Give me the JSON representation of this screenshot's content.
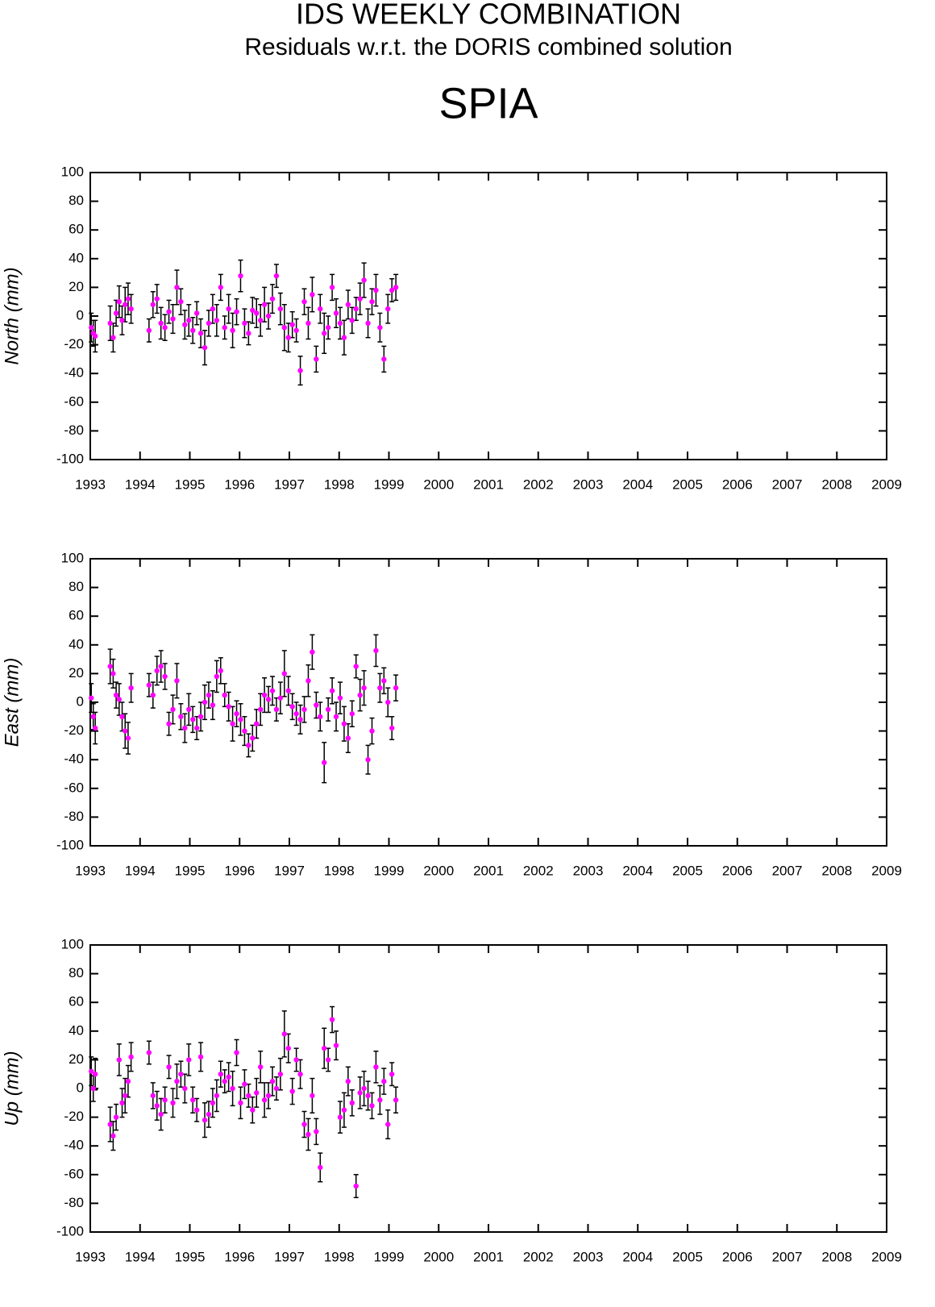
{
  "title": "IDS WEEKLY COMBINATION",
  "subtitle": "Residuals w.r.t. the DORIS combined solution",
  "station": "SPIA",
  "chart_data": [
    {
      "type": "scatter",
      "ylabel": "North (mm)",
      "color": "#ff00ff",
      "error_color": "#000000",
      "xlim": [
        1993,
        2009
      ],
      "xticks": [
        1993,
        1994,
        1995,
        1996,
        1997,
        1998,
        1999,
        2000,
        2001,
        2002,
        2003,
        2004,
        2005,
        2006,
        2007,
        2008,
        2009
      ],
      "ylim": [
        -100,
        100
      ],
      "yticks": [
        -100,
        -80,
        -60,
        -40,
        -20,
        0,
        20,
        40,
        60,
        80,
        100
      ],
      "x": [
        1993.02,
        1993.06,
        1993.1,
        1993.4,
        1993.46,
        1993.52,
        1993.58,
        1993.64,
        1993.7,
        1993.76,
        1993.82,
        1994.18,
        1994.26,
        1994.34,
        1994.42,
        1994.5,
        1994.58,
        1994.66,
        1994.74,
        1994.82,
        1994.9,
        1994.98,
        1995.06,
        1995.14,
        1995.22,
        1995.3,
        1995.38,
        1995.46,
        1995.54,
        1995.62,
        1995.7,
        1995.78,
        1995.86,
        1995.94,
        1996.02,
        1996.1,
        1996.18,
        1996.26,
        1996.34,
        1996.42,
        1996.5,
        1996.58,
        1996.66,
        1996.74,
        1996.82,
        1996.9,
        1996.98,
        1997.06,
        1997.14,
        1997.22,
        1997.3,
        1997.38,
        1997.46,
        1997.54,
        1997.62,
        1997.7,
        1997.78,
        1997.86,
        1997.94,
        1998.02,
        1998.1,
        1998.18,
        1998.26,
        1998.34,
        1998.42,
        1998.5,
        1998.58,
        1998.66,
        1998.74,
        1998.82,
        1998.9,
        1998.98,
        1999.06,
        1999.14
      ],
      "values": [
        -8,
        -12,
        -14,
        -5,
        -15,
        2,
        10,
        -3,
        8,
        12,
        5,
        -10,
        8,
        12,
        -5,
        -8,
        3,
        -2,
        20,
        10,
        -6,
        -3,
        -10,
        2,
        -12,
        -22,
        -5,
        5,
        -3,
        20,
        -8,
        5,
        -10,
        3,
        28,
        -5,
        -12,
        4,
        2,
        -3,
        8,
        0,
        12,
        28,
        5,
        -8,
        -15,
        -6,
        -10,
        -38,
        10,
        -5,
        15,
        -30,
        5,
        -12,
        -8,
        20,
        2,
        -5,
        -15,
        8,
        -3,
        5,
        12,
        25,
        -5,
        10,
        18,
        -8,
        -30,
        5,
        18,
        20
      ],
      "errors": [
        10,
        9,
        11,
        12,
        10,
        9,
        11,
        10,
        12,
        11,
        10,
        8,
        9,
        10,
        11,
        9,
        8,
        10,
        12,
        9,
        10,
        11,
        9,
        8,
        10,
        12,
        9,
        10,
        11,
        9,
        8,
        10,
        12,
        9,
        11,
        10,
        8,
        9,
        10,
        11,
        12,
        9,
        10,
        8,
        11,
        16,
        10,
        9,
        8,
        10,
        9,
        11,
        12,
        9,
        10,
        14,
        8,
        9,
        10,
        11,
        12,
        10,
        9,
        8,
        11,
        12,
        10,
        9,
        11,
        10,
        9,
        10,
        8,
        9
      ]
    },
    {
      "type": "scatter",
      "ylabel": "East (mm)",
      "color": "#ff00ff",
      "error_color": "#000000",
      "xlim": [
        1993,
        2009
      ],
      "xticks": [
        1993,
        1994,
        1995,
        1996,
        1997,
        1998,
        1999,
        2000,
        2001,
        2002,
        2003,
        2004,
        2005,
        2006,
        2007,
        2008,
        2009
      ],
      "ylim": [
        -100,
        100
      ],
      "yticks": [
        -100,
        -80,
        -60,
        -40,
        -20,
        0,
        20,
        40,
        60,
        80,
        100
      ],
      "x": [
        1993.02,
        1993.06,
        1993.1,
        1993.4,
        1993.46,
        1993.52,
        1993.58,
        1993.64,
        1993.7,
        1993.76,
        1993.82,
        1994.18,
        1994.26,
        1994.34,
        1994.42,
        1994.5,
        1994.58,
        1994.66,
        1994.74,
        1994.82,
        1994.9,
        1994.98,
        1995.06,
        1995.14,
        1995.22,
        1995.3,
        1995.38,
        1995.46,
        1995.54,
        1995.62,
        1995.7,
        1995.78,
        1995.86,
        1995.94,
        1996.02,
        1996.1,
        1996.18,
        1996.26,
        1996.34,
        1996.42,
        1996.5,
        1996.58,
        1996.66,
        1996.74,
        1996.82,
        1996.9,
        1996.98,
        1997.06,
        1997.14,
        1997.22,
        1997.3,
        1997.38,
        1997.46,
        1997.54,
        1997.62,
        1997.7,
        1997.78,
        1997.86,
        1997.94,
        1998.02,
        1998.1,
        1998.18,
        1998.26,
        1998.34,
        1998.42,
        1998.5,
        1998.58,
        1998.66,
        1998.74,
        1998.82,
        1998.9,
        1998.98,
        1999.06,
        1999.14
      ],
      "values": [
        3,
        -10,
        -18,
        25,
        20,
        5,
        2,
        -10,
        -20,
        -25,
        10,
        12,
        5,
        22,
        25,
        18,
        -15,
        -5,
        15,
        -10,
        -18,
        -5,
        -12,
        -18,
        -10,
        0,
        5,
        -2,
        18,
        22,
        5,
        -3,
        -15,
        -8,
        -12,
        -20,
        -30,
        -25,
        -15,
        -5,
        5,
        2,
        8,
        -5,
        3,
        20,
        8,
        -3,
        -8,
        -12,
        -5,
        15,
        35,
        -2,
        -10,
        -42,
        -5,
        8,
        -10,
        3,
        -15,
        -25,
        -8,
        25,
        5,
        10,
        -40,
        -20,
        36,
        10,
        15,
        0,
        -18,
        10
      ],
      "errors": [
        10,
        9,
        11,
        12,
        10,
        9,
        11,
        10,
        12,
        11,
        10,
        8,
        9,
        10,
        11,
        9,
        8,
        10,
        12,
        9,
        10,
        11,
        9,
        8,
        10,
        12,
        9,
        10,
        11,
        9,
        8,
        10,
        12,
        9,
        11,
        10,
        8,
        9,
        10,
        11,
        12,
        9,
        10,
        8,
        11,
        16,
        10,
        9,
        8,
        10,
        9,
        11,
        12,
        9,
        10,
        14,
        8,
        9,
        10,
        11,
        12,
        10,
        9,
        8,
        11,
        12,
        10,
        9,
        11,
        10,
        9,
        10,
        8,
        9
      ]
    },
    {
      "type": "scatter",
      "ylabel": "Up (mm)",
      "color": "#ff00ff",
      "error_color": "#000000",
      "xlim": [
        1993,
        2009
      ],
      "xticks": [
        1993,
        1994,
        1995,
        1996,
        1997,
        1998,
        1999,
        2000,
        2001,
        2002,
        2003,
        2004,
        2005,
        2006,
        2007,
        2008,
        2009
      ],
      "ylim": [
        -100,
        100
      ],
      "yticks": [
        -100,
        -80,
        -60,
        -40,
        -20,
        0,
        20,
        40,
        60,
        80,
        100
      ],
      "x": [
        1993.02,
        1993.06,
        1993.1,
        1993.4,
        1993.46,
        1993.52,
        1993.58,
        1993.64,
        1993.7,
        1993.76,
        1993.82,
        1994.18,
        1994.26,
        1994.34,
        1994.42,
        1994.5,
        1994.58,
        1994.66,
        1994.74,
        1994.82,
        1994.9,
        1994.98,
        1995.06,
        1995.14,
        1995.22,
        1995.3,
        1995.38,
        1995.46,
        1995.54,
        1995.62,
        1995.7,
        1995.78,
        1995.86,
        1995.94,
        1996.02,
        1996.1,
        1996.18,
        1996.26,
        1996.34,
        1996.42,
        1996.5,
        1996.58,
        1996.66,
        1996.74,
        1996.82,
        1996.9,
        1996.98,
        1997.06,
        1997.14,
        1997.22,
        1997.3,
        1997.38,
        1997.46,
        1997.54,
        1997.62,
        1997.7,
        1997.78,
        1997.86,
        1997.94,
        1998.02,
        1998.1,
        1998.18,
        1998.26,
        1998.34,
        1998.42,
        1998.5,
        1998.58,
        1998.66,
        1998.74,
        1998.82,
        1998.9,
        1998.98,
        1999.06,
        1999.14
      ],
      "values": [
        12,
        0,
        10,
        -25,
        -33,
        -20,
        20,
        -10,
        -5,
        5,
        22,
        25,
        -5,
        -12,
        -18,
        -8,
        15,
        -10,
        5,
        10,
        0,
        20,
        -8,
        -15,
        22,
        -22,
        -18,
        -10,
        -5,
        10,
        5,
        8,
        0,
        25,
        -10,
        3,
        -5,
        -15,
        -3,
        15,
        -8,
        -5,
        5,
        0,
        10,
        38,
        28,
        -2,
        20,
        10,
        -25,
        -32,
        -5,
        -30,
        -55,
        28,
        20,
        48,
        30,
        -20,
        -15,
        5,
        -10,
        -68,
        -3,
        0,
        -5,
        -12,
        15,
        -8,
        5,
        -25,
        10,
        -8
      ],
      "errors": [
        10,
        9,
        11,
        12,
        10,
        9,
        11,
        10,
        12,
        11,
        10,
        8,
        9,
        10,
        11,
        9,
        8,
        10,
        12,
        9,
        10,
        11,
        9,
        8,
        10,
        12,
        9,
        10,
        11,
        9,
        8,
        10,
        12,
        9,
        11,
        10,
        8,
        9,
        10,
        11,
        12,
        9,
        10,
        8,
        11,
        16,
        10,
        9,
        8,
        10,
        9,
        11,
        12,
        9,
        10,
        14,
        8,
        9,
        10,
        11,
        12,
        10,
        9,
        8,
        11,
        12,
        10,
        9,
        11,
        10,
        9,
        10,
        8,
        9
      ]
    }
  ]
}
